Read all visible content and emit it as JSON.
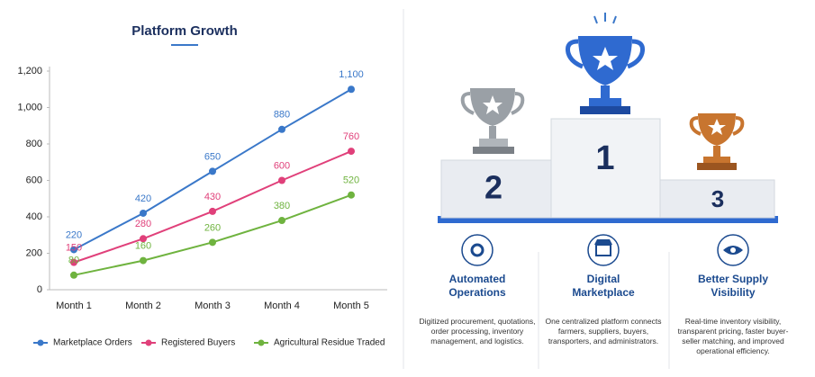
{
  "chart_data": {
    "type": "line",
    "title": "Platform Growth",
    "categories": [
      "Month 1",
      "Month 2",
      "Month 3",
      "Month 4",
      "Month 5"
    ],
    "series": [
      {
        "name": "Marketplace Orders",
        "color": "#3a78c9",
        "values": [
          220,
          420,
          650,
          880,
          1100
        ],
        "value_labels": [
          "220",
          "420",
          "650",
          "880",
          "1,100"
        ]
      },
      {
        "name": "Registered Buyers",
        "color": "#e0407a",
        "values": [
          150,
          280,
          430,
          600,
          760
        ]
      },
      {
        "name": "Agricultural Residue Traded",
        "color": "#6fb33f",
        "values": [
          80,
          160,
          260,
          380,
          520
        ]
      }
    ],
    "ylim": [
      0,
      1200
    ],
    "yticks": [
      0,
      200,
      400,
      600,
      800,
      {
        "value": 1000,
        "label": "1,000"
      },
      {
        "value": 1200,
        "label": "1,200"
      }
    ],
    "grid": false
  },
  "podium": {
    "ranks": [
      1,
      2,
      3
    ]
  },
  "features": [
    {
      "title": "Automated Operations",
      "description": "Digitized procurement, quotations, order processing, inventory management, and logistics."
    },
    {
      "title": "Digital Marketplace",
      "description": "One centralized platform connects farmers, suppliers, buyers, transporters, and administrators."
    },
    {
      "title": "Better Supply Visibility",
      "description": "Real-time inventory visibility, transparent pricing, faster buyer-seller matching, and improved operational efficiency."
    }
  ]
}
